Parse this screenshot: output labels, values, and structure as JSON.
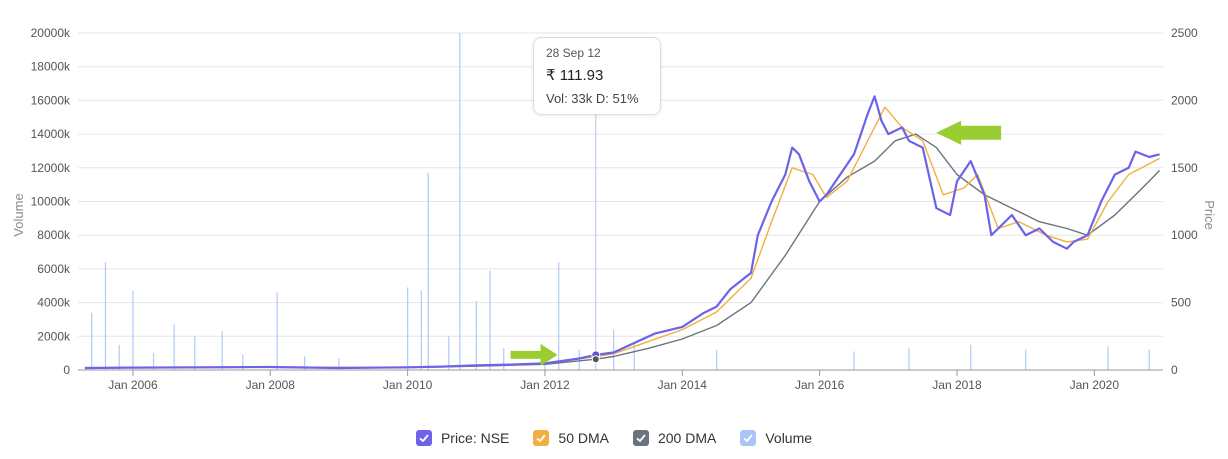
{
  "chart_data": {
    "type": "line",
    "x_axis": {
      "tick_labels": [
        "Jan 2006",
        "Jan 2008",
        "Jan 2010",
        "Jan 2012",
        "Jan 2014",
        "Jan 2016",
        "Jan 2018",
        "Jan 2020"
      ],
      "tick_years": [
        2006,
        2008,
        2010,
        2012,
        2014,
        2016,
        2018,
        2020
      ],
      "range": [
        2005.2,
        2021.0
      ]
    },
    "y_left": {
      "label": "Volume",
      "tick_labels": [
        "0",
        "2000k",
        "4000k",
        "6000k",
        "8000k",
        "10000k",
        "12000k",
        "14000k",
        "16000k",
        "18000k",
        "20000k"
      ],
      "range": [
        0,
        20000000
      ]
    },
    "y_right": {
      "label": "Price",
      "tick_labels": [
        "0",
        "500",
        "1000",
        "1500",
        "2000",
        "2500"
      ],
      "range": [
        0,
        2500
      ]
    },
    "grid": true,
    "legend_position": "bottom",
    "series": [
      {
        "name": "Price: NSE",
        "color": "#6c63e8",
        "points": [
          [
            2005.3,
            15
          ],
          [
            2006,
            18
          ],
          [
            2007,
            20
          ],
          [
            2008,
            22
          ],
          [
            2009,
            15
          ],
          [
            2010,
            20
          ],
          [
            2010.5,
            25
          ],
          [
            2011,
            35
          ],
          [
            2011.5,
            40
          ],
          [
            2012,
            50
          ],
          [
            2012.5,
            85
          ],
          [
            2012.74,
            111.93
          ],
          [
            2013,
            130
          ],
          [
            2013.3,
            200
          ],
          [
            2013.6,
            270
          ],
          [
            2014,
            320
          ],
          [
            2014.3,
            420
          ],
          [
            2014.5,
            470
          ],
          [
            2014.7,
            600
          ],
          [
            2015,
            720
          ],
          [
            2015.1,
            1000
          ],
          [
            2015.3,
            1250
          ],
          [
            2015.5,
            1450
          ],
          [
            2015.6,
            1650
          ],
          [
            2015.7,
            1600
          ],
          [
            2015.85,
            1400
          ],
          [
            2016,
            1250
          ],
          [
            2016.1,
            1300
          ],
          [
            2016.3,
            1450
          ],
          [
            2016.5,
            1600
          ],
          [
            2016.7,
            1900
          ],
          [
            2016.8,
            2030
          ],
          [
            2016.9,
            1850
          ],
          [
            2017,
            1750
          ],
          [
            2017.2,
            1800
          ],
          [
            2017.3,
            1700
          ],
          [
            2017.5,
            1650
          ],
          [
            2017.7,
            1200
          ],
          [
            2017.9,
            1150
          ],
          [
            2018,
            1400
          ],
          [
            2018.2,
            1550
          ],
          [
            2018.4,
            1300
          ],
          [
            2018.5,
            1000
          ],
          [
            2018.6,
            1050
          ],
          [
            2018.8,
            1150
          ],
          [
            2019,
            1000
          ],
          [
            2019.2,
            1050
          ],
          [
            2019.4,
            950
          ],
          [
            2019.6,
            900
          ],
          [
            2019.7,
            950
          ],
          [
            2019.9,
            1000
          ],
          [
            2020.1,
            1250
          ],
          [
            2020.3,
            1450
          ],
          [
            2020.5,
            1500
          ],
          [
            2020.6,
            1620
          ],
          [
            2020.8,
            1580
          ],
          [
            2020.95,
            1600
          ]
        ]
      },
      {
        "name": "50 DMA",
        "color": "#f0b040",
        "points": [
          [
            2005.3,
            15
          ],
          [
            2008,
            20
          ],
          [
            2010,
            18
          ],
          [
            2011,
            32
          ],
          [
            2012,
            48
          ],
          [
            2012.74,
            100
          ],
          [
            2013,
            120
          ],
          [
            2013.5,
            210
          ],
          [
            2014,
            300
          ],
          [
            2014.5,
            430
          ],
          [
            2015,
            680
          ],
          [
            2015.3,
            1100
          ],
          [
            2015.6,
            1500
          ],
          [
            2015.9,
            1450
          ],
          [
            2016.1,
            1280
          ],
          [
            2016.4,
            1400
          ],
          [
            2016.7,
            1700
          ],
          [
            2016.95,
            1950
          ],
          [
            2017.2,
            1800
          ],
          [
            2017.5,
            1700
          ],
          [
            2017.8,
            1300
          ],
          [
            2018.1,
            1350
          ],
          [
            2018.3,
            1450
          ],
          [
            2018.6,
            1050
          ],
          [
            2018.9,
            1100
          ],
          [
            2019.3,
            1000
          ],
          [
            2019.6,
            950
          ],
          [
            2019.9,
            970
          ],
          [
            2020.2,
            1250
          ],
          [
            2020.5,
            1450
          ],
          [
            2020.95,
            1570
          ]
        ]
      },
      {
        "name": "200 DMA",
        "color": "#6b7280",
        "points": [
          [
            2005.3,
            15
          ],
          [
            2008,
            20
          ],
          [
            2010,
            18
          ],
          [
            2011,
            28
          ],
          [
            2012,
            42
          ],
          [
            2012.74,
            80
          ],
          [
            2013,
            100
          ],
          [
            2013.5,
            160
          ],
          [
            2014,
            230
          ],
          [
            2014.5,
            330
          ],
          [
            2015,
            500
          ],
          [
            2015.5,
            850
          ],
          [
            2016,
            1250
          ],
          [
            2016.4,
            1430
          ],
          [
            2016.8,
            1550
          ],
          [
            2017.1,
            1700
          ],
          [
            2017.4,
            1750
          ],
          [
            2017.7,
            1650
          ],
          [
            2018,
            1450
          ],
          [
            2018.4,
            1300
          ],
          [
            2018.8,
            1200
          ],
          [
            2019.2,
            1100
          ],
          [
            2019.6,
            1050
          ],
          [
            2019.9,
            1000
          ],
          [
            2020.3,
            1150
          ],
          [
            2020.7,
            1350
          ],
          [
            2020.95,
            1480
          ]
        ]
      },
      {
        "name": "Volume",
        "color": "#a9c4f7",
        "points": [
          [
            2005.4,
            3400
          ],
          [
            2005.6,
            6400
          ],
          [
            2005.8,
            1500
          ],
          [
            2006,
            4700
          ],
          [
            2006.3,
            1000
          ],
          [
            2006.6,
            2700
          ],
          [
            2006.9,
            2000
          ],
          [
            2007.3,
            2300
          ],
          [
            2007.6,
            900
          ],
          [
            2008.1,
            4600
          ],
          [
            2008.5,
            800
          ],
          [
            2009,
            700
          ],
          [
            2010,
            4900
          ],
          [
            2010.2,
            4700
          ],
          [
            2010.3,
            11700
          ],
          [
            2010.6,
            2000
          ],
          [
            2010.76,
            20000
          ],
          [
            2011,
            4100
          ],
          [
            2011.2,
            5900
          ],
          [
            2011.4,
            1300
          ],
          [
            2012,
            800
          ],
          [
            2012.2,
            6400
          ],
          [
            2012.5,
            1200
          ],
          [
            2013,
            2400
          ],
          [
            2013.3,
            1600
          ],
          [
            2014.5,
            1200
          ],
          [
            2016.5,
            1100
          ],
          [
            2017.3,
            1300
          ],
          [
            2018.2,
            1500
          ],
          [
            2019,
            1200
          ],
          [
            2020.2,
            1400
          ],
          [
            2020.8,
            1200
          ]
        ]
      }
    ]
  },
  "tooltip": {
    "date": "28 Sep 12",
    "price": "₹ 111.93",
    "details": "Vol: 33k D: 51%"
  },
  "legend": [
    {
      "label": "Price: NSE",
      "color": "#6c63e8"
    },
    {
      "label": "50 DMA",
      "color": "#f0b040"
    },
    {
      "label": "200 DMA",
      "color": "#6b7280"
    },
    {
      "label": "Volume",
      "color": "#a9c4f7"
    }
  ],
  "annotations": {
    "arrow_color": "#9acd32",
    "arrows": [
      {
        "x": 2012.3,
        "price": 111.93,
        "direction": "right"
      },
      {
        "x": 2017.55,
        "price": 1760,
        "direction": "left"
      }
    ]
  }
}
